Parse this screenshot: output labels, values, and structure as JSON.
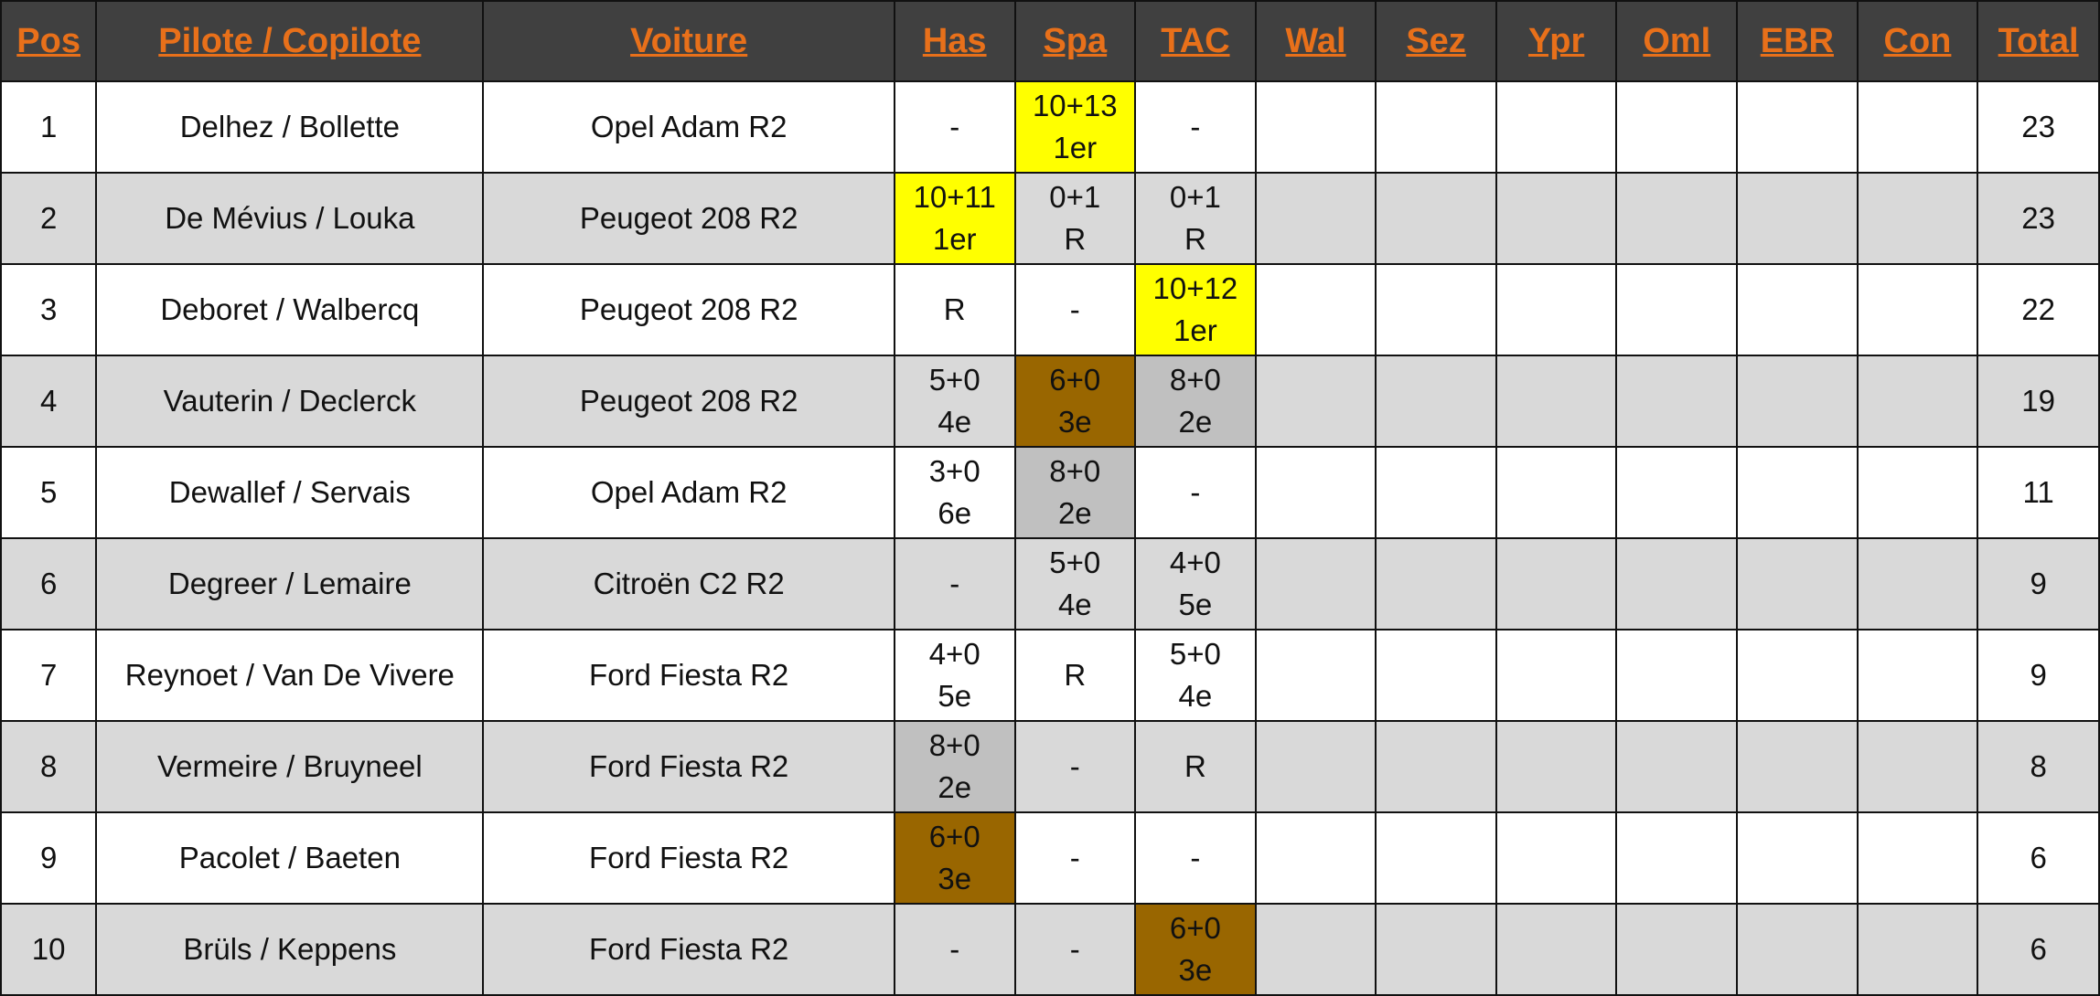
{
  "headers": [
    "Pos",
    "Pilote / Copilote",
    "Voiture",
    "Has",
    "Spa",
    "TAC",
    "Wal",
    "Sez",
    "Ypr",
    "Oml",
    "EBR",
    "Con",
    "Total"
  ],
  "colors": {
    "header_bg": "#404040",
    "header_text": "#e8701a",
    "row_alt": "#d9d9d9",
    "first_place": "#ffff00",
    "second_place": "#c0c0c0",
    "third_place": "#996600"
  },
  "rows": [
    {
      "pos": "1",
      "crew": "Delhez / Bollette",
      "car": "Opel Adam R2",
      "results": [
        {
          "text": "-",
          "sub": "",
          "medal": ""
        },
        {
          "text": "10+13",
          "sub": "1er",
          "medal": "gold"
        },
        {
          "text": "-",
          "sub": "",
          "medal": ""
        },
        {
          "text": "",
          "sub": "",
          "medal": ""
        },
        {
          "text": "",
          "sub": "",
          "medal": ""
        },
        {
          "text": "",
          "sub": "",
          "medal": ""
        },
        {
          "text": "",
          "sub": "",
          "medal": ""
        },
        {
          "text": "",
          "sub": "",
          "medal": ""
        },
        {
          "text": "",
          "sub": "",
          "medal": ""
        }
      ],
      "total": "23"
    },
    {
      "pos": "2",
      "crew": "De Mévius / Louka",
      "car": "Peugeot 208 R2",
      "results": [
        {
          "text": "10+11",
          "sub": "1er",
          "medal": "gold"
        },
        {
          "text": "0+1",
          "sub": "R",
          "medal": ""
        },
        {
          "text": "0+1",
          "sub": "R",
          "medal": ""
        },
        {
          "text": "",
          "sub": "",
          "medal": ""
        },
        {
          "text": "",
          "sub": "",
          "medal": ""
        },
        {
          "text": "",
          "sub": "",
          "medal": ""
        },
        {
          "text": "",
          "sub": "",
          "medal": ""
        },
        {
          "text": "",
          "sub": "",
          "medal": ""
        },
        {
          "text": "",
          "sub": "",
          "medal": ""
        }
      ],
      "total": "23"
    },
    {
      "pos": "3",
      "crew": "Deboret / Walbercq",
      "car": "Peugeot 208 R2",
      "results": [
        {
          "text": "R",
          "sub": "",
          "medal": ""
        },
        {
          "text": "-",
          "sub": "",
          "medal": ""
        },
        {
          "text": "10+12",
          "sub": "1er",
          "medal": "gold"
        },
        {
          "text": "",
          "sub": "",
          "medal": ""
        },
        {
          "text": "",
          "sub": "",
          "medal": ""
        },
        {
          "text": "",
          "sub": "",
          "medal": ""
        },
        {
          "text": "",
          "sub": "",
          "medal": ""
        },
        {
          "text": "",
          "sub": "",
          "medal": ""
        },
        {
          "text": "",
          "sub": "",
          "medal": ""
        }
      ],
      "total": "22"
    },
    {
      "pos": "4",
      "crew": "Vauterin / Declerck",
      "car": "Peugeot 208 R2",
      "results": [
        {
          "text": "5+0",
          "sub": "4e",
          "medal": ""
        },
        {
          "text": "6+0",
          "sub": "3e",
          "medal": "bronze"
        },
        {
          "text": "8+0",
          "sub": "2e",
          "medal": "silver"
        },
        {
          "text": "",
          "sub": "",
          "medal": ""
        },
        {
          "text": "",
          "sub": "",
          "medal": ""
        },
        {
          "text": "",
          "sub": "",
          "medal": ""
        },
        {
          "text": "",
          "sub": "",
          "medal": ""
        },
        {
          "text": "",
          "sub": "",
          "medal": ""
        },
        {
          "text": "",
          "sub": "",
          "medal": ""
        }
      ],
      "total": "19"
    },
    {
      "pos": "5",
      "crew": "Dewallef / Servais",
      "car": "Opel Adam R2",
      "results": [
        {
          "text": "3+0",
          "sub": "6e",
          "medal": ""
        },
        {
          "text": "8+0",
          "sub": "2e",
          "medal": "silver"
        },
        {
          "text": "-",
          "sub": "",
          "medal": ""
        },
        {
          "text": "",
          "sub": "",
          "medal": ""
        },
        {
          "text": "",
          "sub": "",
          "medal": ""
        },
        {
          "text": "",
          "sub": "",
          "medal": ""
        },
        {
          "text": "",
          "sub": "",
          "medal": ""
        },
        {
          "text": "",
          "sub": "",
          "medal": ""
        },
        {
          "text": "",
          "sub": "",
          "medal": ""
        }
      ],
      "total": "11"
    },
    {
      "pos": "6",
      "crew": "Degreer / Lemaire",
      "car": "Citroën C2 R2",
      "results": [
        {
          "text": "-",
          "sub": "",
          "medal": ""
        },
        {
          "text": "5+0",
          "sub": "4e",
          "medal": ""
        },
        {
          "text": "4+0",
          "sub": "5e",
          "medal": ""
        },
        {
          "text": "",
          "sub": "",
          "medal": ""
        },
        {
          "text": "",
          "sub": "",
          "medal": ""
        },
        {
          "text": "",
          "sub": "",
          "medal": ""
        },
        {
          "text": "",
          "sub": "",
          "medal": ""
        },
        {
          "text": "",
          "sub": "",
          "medal": ""
        },
        {
          "text": "",
          "sub": "",
          "medal": ""
        }
      ],
      "total": "9"
    },
    {
      "pos": "7",
      "crew": "Reynoet / Van De Vivere",
      "car": "Ford Fiesta R2",
      "results": [
        {
          "text": "4+0",
          "sub": "5e",
          "medal": ""
        },
        {
          "text": "R",
          "sub": "",
          "medal": ""
        },
        {
          "text": "5+0",
          "sub": "4e",
          "medal": ""
        },
        {
          "text": "",
          "sub": "",
          "medal": ""
        },
        {
          "text": "",
          "sub": "",
          "medal": ""
        },
        {
          "text": "",
          "sub": "",
          "medal": ""
        },
        {
          "text": "",
          "sub": "",
          "medal": ""
        },
        {
          "text": "",
          "sub": "",
          "medal": ""
        },
        {
          "text": "",
          "sub": "",
          "medal": ""
        }
      ],
      "total": "9"
    },
    {
      "pos": "8",
      "crew": "Vermeire / Bruyneel",
      "car": "Ford Fiesta R2",
      "results": [
        {
          "text": "8+0",
          "sub": "2e",
          "medal": "silver"
        },
        {
          "text": "-",
          "sub": "",
          "medal": ""
        },
        {
          "text": "R",
          "sub": "",
          "medal": ""
        },
        {
          "text": "",
          "sub": "",
          "medal": ""
        },
        {
          "text": "",
          "sub": "",
          "medal": ""
        },
        {
          "text": "",
          "sub": "",
          "medal": ""
        },
        {
          "text": "",
          "sub": "",
          "medal": ""
        },
        {
          "text": "",
          "sub": "",
          "medal": ""
        },
        {
          "text": "",
          "sub": "",
          "medal": ""
        }
      ],
      "total": "8"
    },
    {
      "pos": "9",
      "crew": "Pacolet / Baeten",
      "car": "Ford Fiesta R2",
      "results": [
        {
          "text": "6+0",
          "sub": "3e",
          "medal": "bronze"
        },
        {
          "text": "-",
          "sub": "",
          "medal": ""
        },
        {
          "text": "-",
          "sub": "",
          "medal": ""
        },
        {
          "text": "",
          "sub": "",
          "medal": ""
        },
        {
          "text": "",
          "sub": "",
          "medal": ""
        },
        {
          "text": "",
          "sub": "",
          "medal": ""
        },
        {
          "text": "",
          "sub": "",
          "medal": ""
        },
        {
          "text": "",
          "sub": "",
          "medal": ""
        },
        {
          "text": "",
          "sub": "",
          "medal": ""
        }
      ],
      "total": "6"
    },
    {
      "pos": "10",
      "crew": "Brüls / Keppens",
      "car": "Ford Fiesta R2",
      "results": [
        {
          "text": "-",
          "sub": "",
          "medal": ""
        },
        {
          "text": "-",
          "sub": "",
          "medal": ""
        },
        {
          "text": "6+0",
          "sub": "3e",
          "medal": "bronze"
        },
        {
          "text": "",
          "sub": "",
          "medal": ""
        },
        {
          "text": "",
          "sub": "",
          "medal": ""
        },
        {
          "text": "",
          "sub": "",
          "medal": ""
        },
        {
          "text": "",
          "sub": "",
          "medal": ""
        },
        {
          "text": "",
          "sub": "",
          "medal": ""
        },
        {
          "text": "",
          "sub": "",
          "medal": ""
        }
      ],
      "total": "6"
    }
  ]
}
